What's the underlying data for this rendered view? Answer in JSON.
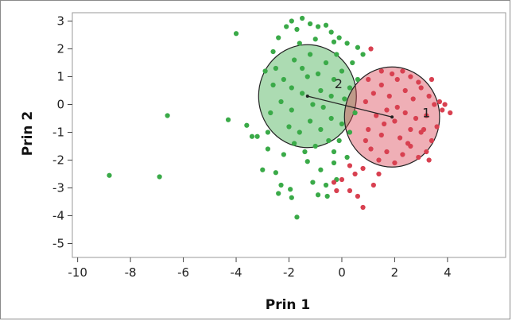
{
  "chart_data": {
    "type": "scatter",
    "xlabel": "Prin 1",
    "ylabel": "Prin 2",
    "xlim": [
      -10.2,
      6.2
    ],
    "ylim": [
      -5.5,
      3.3
    ],
    "x_ticks": [
      -10,
      -8,
      -6,
      -4,
      -2,
      0,
      2,
      4
    ],
    "y_ticks": [
      3,
      2,
      1,
      0,
      -1,
      -2,
      -3,
      -4,
      -5
    ],
    "grid": false,
    "colors": {
      "cluster_1": "#d84050",
      "cluster_2": "#3aaa48"
    },
    "series": [
      {
        "label": "2",
        "circle": {
          "center": [
            -1.3,
            0.3
          ],
          "radius": 1.85
        },
        "points": [
          [
            -8.8,
            -2.55
          ],
          [
            -6.9,
            -2.6
          ],
          [
            -6.6,
            -0.4
          ],
          [
            -4.0,
            2.55
          ],
          [
            -4.3,
            -0.55
          ],
          [
            -3.6,
            -0.75
          ],
          [
            -3.4,
            -1.15
          ],
          [
            -3.2,
            -1.15
          ],
          [
            -3.0,
            -2.35
          ],
          [
            -2.8,
            -1.6
          ],
          [
            -2.5,
            -2.45
          ],
          [
            -2.3,
            -2.9
          ],
          [
            -2.4,
            -3.2
          ],
          [
            -1.9,
            -3.35
          ],
          [
            -1.95,
            -3.05
          ],
          [
            -1.1,
            -2.8
          ],
          [
            -0.9,
            -3.25
          ],
          [
            -0.55,
            -3.3
          ],
          [
            -0.6,
            -2.9
          ],
          [
            -0.2,
            -2.7
          ],
          [
            -1.7,
            -4.05
          ],
          [
            -1.3,
            -2.05
          ],
          [
            -0.8,
            -2.35
          ],
          [
            -0.3,
            -2.1
          ],
          [
            -2.1,
            2.8
          ],
          [
            -1.9,
            3.0
          ],
          [
            -1.7,
            2.7
          ],
          [
            -1.5,
            3.1
          ],
          [
            -1.2,
            2.9
          ],
          [
            -0.9,
            2.8
          ],
          [
            -0.6,
            2.85
          ],
          [
            -0.4,
            2.6
          ],
          [
            -0.1,
            2.4
          ],
          [
            0.2,
            2.2
          ],
          [
            0.6,
            2.05
          ],
          [
            0.8,
            1.8
          ],
          [
            -2.4,
            2.4
          ],
          [
            -2.6,
            1.9
          ],
          [
            -1.0,
            2.35
          ],
          [
            -0.3,
            2.25
          ],
          [
            -2.9,
            1.2
          ],
          [
            -2.5,
            1.3
          ],
          [
            -2.2,
            0.9
          ],
          [
            -1.8,
            1.6
          ],
          [
            -1.5,
            1.3
          ],
          [
            -1.2,
            1.8
          ],
          [
            -0.9,
            1.1
          ],
          [
            -0.6,
            1.5
          ],
          [
            -0.3,
            0.9
          ],
          [
            0.0,
            1.2
          ],
          [
            0.3,
            0.6
          ],
          [
            0.1,
            0.2
          ],
          [
            -0.4,
            0.3
          ],
          [
            -0.8,
            0.5
          ],
          [
            -1.1,
            0.0
          ],
          [
            -1.5,
            0.4
          ],
          [
            -1.9,
            -0.2
          ],
          [
            -2.3,
            0.1
          ],
          [
            -2.7,
            -0.3
          ],
          [
            -2.0,
            -0.8
          ],
          [
            -1.6,
            -1.0
          ],
          [
            -1.2,
            -0.6
          ],
          [
            -0.8,
            -0.9
          ],
          [
            -0.4,
            -0.5
          ],
          [
            0.0,
            -0.7
          ],
          [
            0.3,
            -1.0
          ],
          [
            -0.5,
            -1.3
          ],
          [
            -1.0,
            -1.5
          ],
          [
            -1.4,
            -1.7
          ],
          [
            -1.8,
            -1.4
          ],
          [
            -2.2,
            -1.8
          ],
          [
            -0.3,
            -1.7
          ],
          [
            0.2,
            -1.9
          ],
          [
            0.5,
            -0.3
          ],
          [
            0.6,
            0.9
          ],
          [
            -2.6,
            0.7
          ],
          [
            -1.3,
            1.0
          ],
          [
            -0.7,
            -0.1
          ],
          [
            -1.9,
            0.6
          ],
          [
            -0.1,
            -1.3
          ],
          [
            0.4,
            1.5
          ],
          [
            -1.6,
            2.2
          ],
          [
            -0.2,
            1.8
          ],
          [
            -2.8,
            -1.0
          ]
        ]
      },
      {
        "label": "1",
        "circle": {
          "center": [
            1.9,
            -0.45
          ],
          "radius": 1.8
        },
        "points": [
          [
            1.0,
            -0.9
          ],
          [
            1.3,
            -0.4
          ],
          [
            1.5,
            -1.1
          ],
          [
            1.7,
            -0.2
          ],
          [
            2.0,
            -0.6
          ],
          [
            2.2,
            -1.2
          ],
          [
            2.4,
            -0.3
          ],
          [
            2.6,
            -0.9
          ],
          [
            2.8,
            -0.5
          ],
          [
            3.0,
            -1.0
          ],
          [
            3.2,
            -0.4
          ],
          [
            3.4,
            -1.3
          ],
          [
            3.6,
            -0.8
          ],
          [
            3.8,
            -0.2
          ],
          [
            1.2,
            0.4
          ],
          [
            1.5,
            0.7
          ],
          [
            1.8,
            0.3
          ],
          [
            2.1,
            0.9
          ],
          [
            2.4,
            0.5
          ],
          [
            2.7,
            0.2
          ],
          [
            3.0,
            0.6
          ],
          [
            3.3,
            0.3
          ],
          [
            3.5,
            0.0
          ],
          [
            3.7,
            0.1
          ],
          [
            1.1,
            -1.6
          ],
          [
            1.4,
            -2.0
          ],
          [
            1.7,
            -1.7
          ],
          [
            2.0,
            -2.1
          ],
          [
            2.3,
            -1.8
          ],
          [
            2.6,
            -1.5
          ],
          [
            2.9,
            -1.9
          ],
          [
            3.2,
            -1.7
          ],
          [
            0.9,
            -1.3
          ],
          [
            0.8,
            -2.3
          ],
          [
            0.5,
            -2.5
          ],
          [
            0.3,
            -2.2
          ],
          [
            0.0,
            -2.7
          ],
          [
            0.3,
            -3.1
          ],
          [
            0.6,
            -3.3
          ],
          [
            0.8,
            -3.7
          ],
          [
            -0.2,
            -3.1
          ],
          [
            -0.3,
            -2.8
          ],
          [
            1.2,
            -2.9
          ],
          [
            1.4,
            -2.5
          ],
          [
            1.5,
            1.2
          ],
          [
            1.9,
            1.1
          ],
          [
            2.3,
            1.2
          ],
          [
            2.6,
            1.0
          ],
          [
            2.9,
            0.8
          ],
          [
            3.4,
            0.9
          ],
          [
            3.9,
            0.0
          ],
          [
            4.1,
            -0.3
          ],
          [
            1.0,
            0.9
          ],
          [
            0.9,
            0.1
          ],
          [
            1.1,
            2.0
          ],
          [
            1.6,
            -0.7
          ],
          [
            2.1,
            -0.1
          ],
          [
            2.5,
            -1.4
          ],
          [
            3.1,
            -0.9
          ],
          [
            3.3,
            -2.0
          ]
        ]
      }
    ]
  }
}
